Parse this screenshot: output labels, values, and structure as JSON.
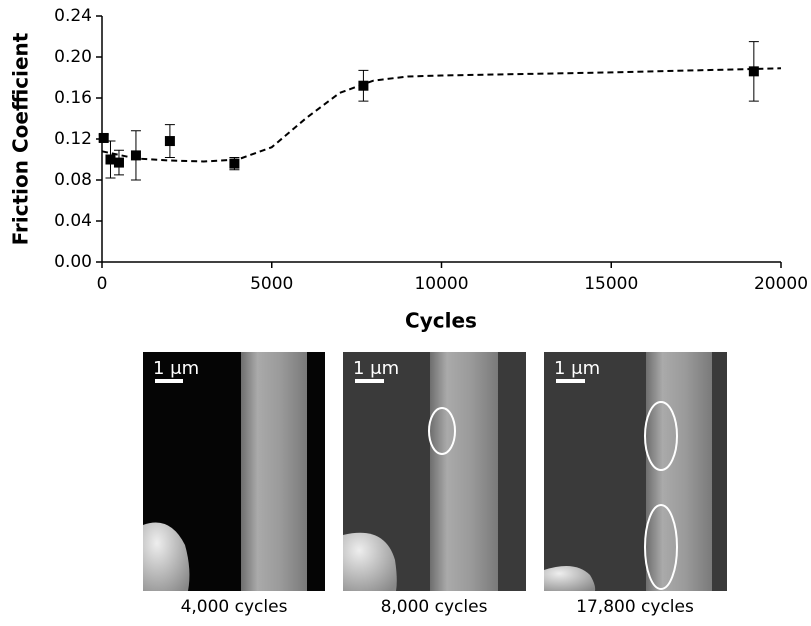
{
  "chart_data": {
    "type": "scatter",
    "xlabel": "Cycles",
    "ylabel": "Friction Coefficient",
    "xlim": [
      0,
      20000
    ],
    "ylim": [
      0,
      0.24
    ],
    "xticks": [
      0,
      5000,
      10000,
      15000,
      20000
    ],
    "yticks": [
      {
        "value": 0,
        "label": "0.00"
      },
      0.04,
      0.08,
      0.12,
      0.16,
      {
        "value": 0.2,
        "label": "0.20"
      },
      0.24
    ],
    "series": [
      {
        "color": "#000000",
        "x": [
          50,
          250,
          500,
          1000,
          2000,
          3900,
          7700,
          19200
        ],
        "values": [
          0.121,
          0.1,
          0.097,
          0.104,
          0.118,
          0.096,
          0.172,
          0.186
        ],
        "errors": [
          0.003,
          0.018,
          0.012,
          0.024,
          0.016,
          0.006,
          0.015,
          0.029
        ]
      }
    ],
    "fit": {
      "color": "#000000",
      "x": [
        0,
        1000,
        2000,
        3000,
        4000,
        5000,
        6000,
        7000,
        8000,
        9000,
        10000,
        15000,
        20000
      ],
      "values": [
        0.108,
        0.101,
        0.099,
        0.098,
        0.1,
        0.112,
        0.14,
        0.165,
        0.177,
        0.181,
        0.182,
        0.185,
        0.189
      ]
    }
  },
  "images": [
    {
      "scale_label": "1 μm",
      "caption": "4,000 cycles"
    },
    {
      "scale_label": "1 μm",
      "caption": "8,000 cycles"
    },
    {
      "scale_label": "1 μm",
      "caption": "17,800 cycles"
    }
  ]
}
